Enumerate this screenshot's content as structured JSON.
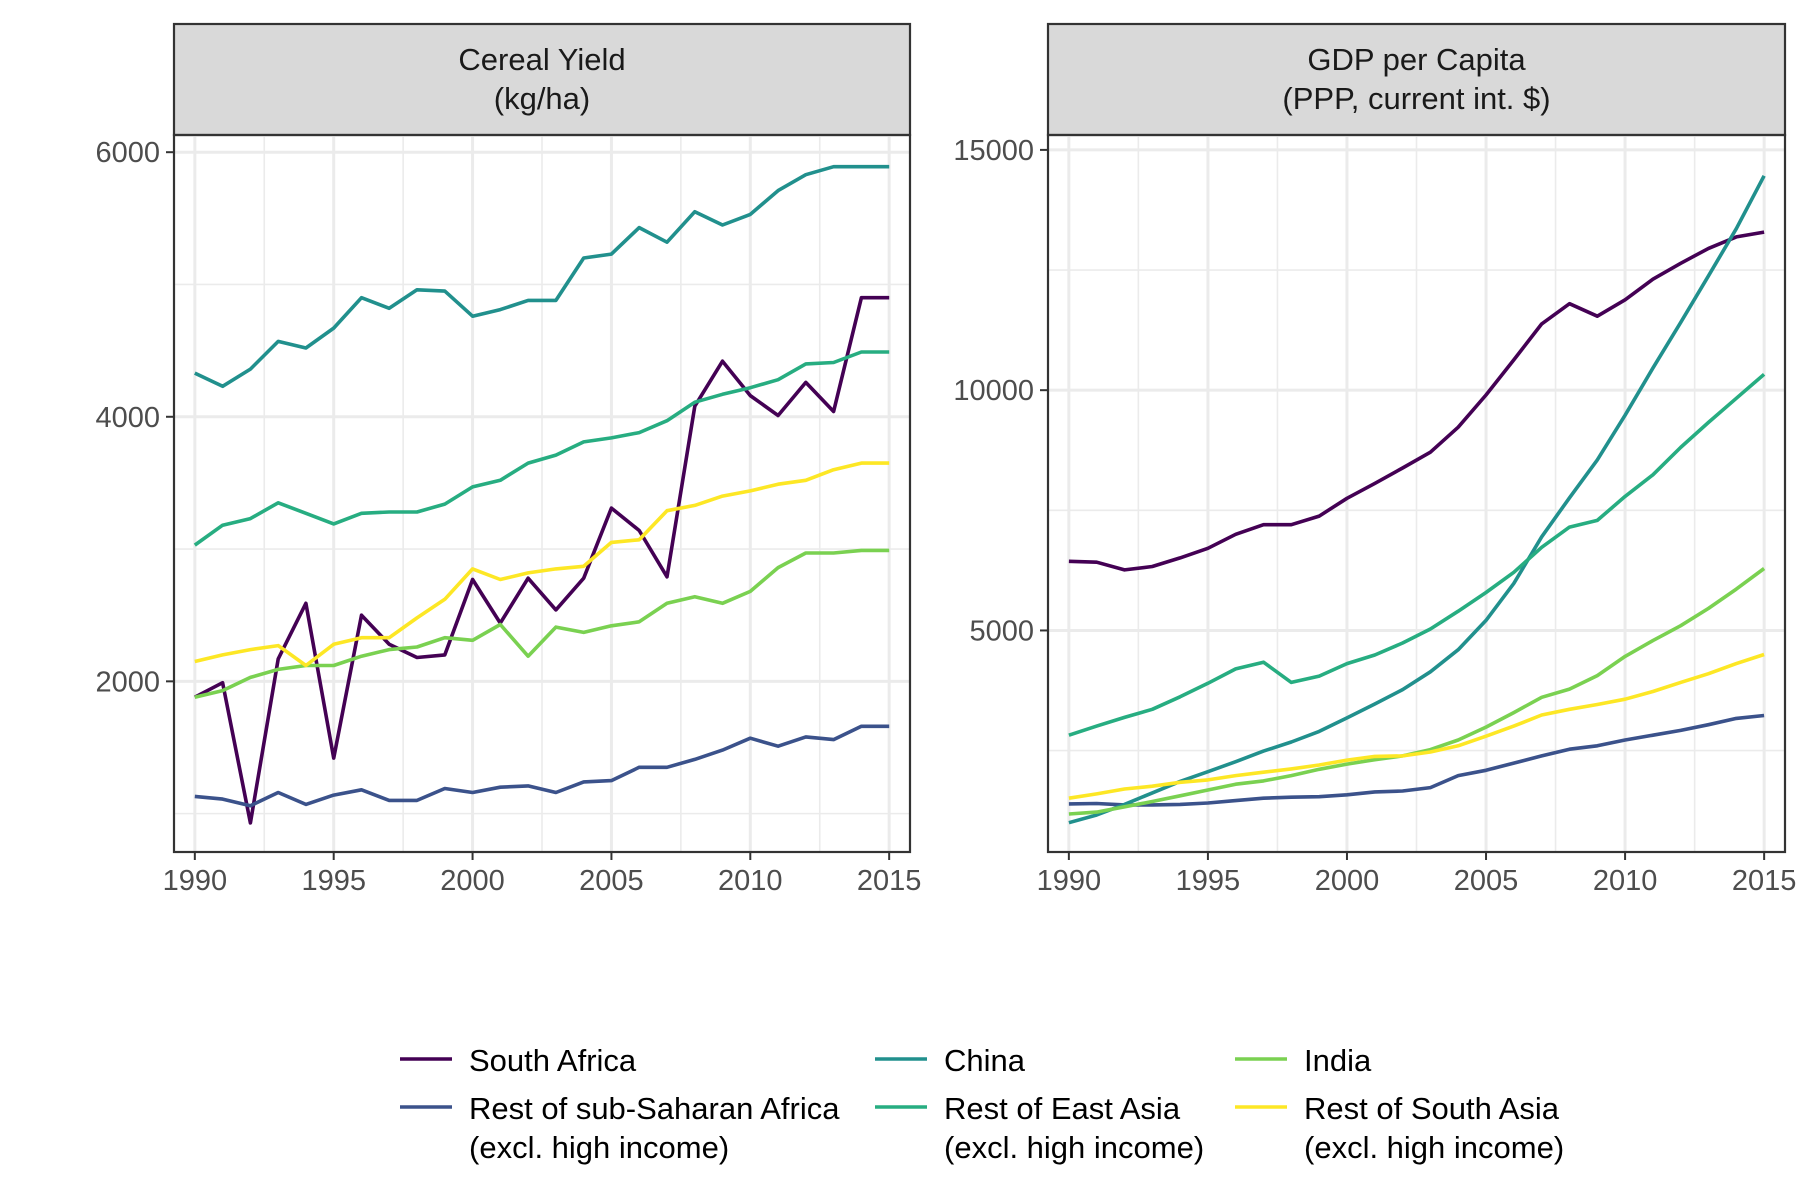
{
  "chart_data": [
    {
      "type": "line",
      "title": "Cereal Yield\n(kg/ha)",
      "xlabel": "",
      "ylabel": "",
      "x": [
        1990,
        1991,
        1992,
        1993,
        1994,
        1995,
        1996,
        1997,
        1998,
        1999,
        2000,
        2001,
        2002,
        2003,
        2004,
        2005,
        2006,
        2007,
        2008,
        2009,
        2010,
        2011,
        2012,
        2013,
        2014,
        2015
      ],
      "xlim": [
        1989.25,
        2015.75
      ],
      "ylim": [
        710,
        6130
      ],
      "xticks": [
        1990,
        1995,
        2000,
        2005,
        2010,
        2015
      ],
      "yticks": [
        2000,
        4000,
        6000
      ],
      "grid": true,
      "series": [
        {
          "name": "South Africa",
          "color": "#440154",
          "values": [
            1880,
            1990,
            930,
            2170,
            2590,
            1420,
            2500,
            2280,
            2180,
            2200,
            2770,
            2440,
            2780,
            2540,
            2780,
            3310,
            3140,
            2790,
            4080,
            4420,
            4160,
            4010,
            4260,
            4040,
            4900,
            4900
          ]
        },
        {
          "name": "Rest of sub-Saharan Africa\n(excl. high income)",
          "color": "#3b528b",
          "values": [
            1130,
            1110,
            1060,
            1160,
            1070,
            1140,
            1180,
            1100,
            1100,
            1190,
            1160,
            1200,
            1210,
            1160,
            1240,
            1250,
            1350,
            1350,
            1410,
            1480,
            1570,
            1510,
            1580,
            1560,
            1660,
            1660
          ]
        },
        {
          "name": "China",
          "color": "#21908d",
          "values": [
            4330,
            4230,
            4360,
            4570,
            4520,
            4670,
            4900,
            4820,
            4960,
            4950,
            4760,
            4810,
            4880,
            4880,
            5200,
            5230,
            5430,
            5320,
            5550,
            5450,
            5530,
            5710,
            5830,
            5890,
            5890,
            5890
          ]
        },
        {
          "name": "Rest of East Asia\n(excl. high income)",
          "color": "#27ad81",
          "values": [
            3030,
            3180,
            3230,
            3350,
            3270,
            3190,
            3270,
            3280,
            3280,
            3340,
            3470,
            3520,
            3650,
            3710,
            3810,
            3840,
            3880,
            3970,
            4110,
            4170,
            4220,
            4280,
            4400,
            4410,
            4490,
            4490
          ]
        },
        {
          "name": "India",
          "color": "#7ad151",
          "values": [
            1880,
            1930,
            2030,
            2090,
            2120,
            2120,
            2190,
            2240,
            2260,
            2330,
            2310,
            2430,
            2190,
            2410,
            2370,
            2420,
            2450,
            2590,
            2640,
            2590,
            2680,
            2860,
            2970,
            2970,
            2990,
            2990
          ]
        },
        {
          "name": "Rest of South Asia\n(excl. high income)",
          "color": "#fde725",
          "values": [
            2150,
            2200,
            2240,
            2270,
            2120,
            2280,
            2330,
            2330,
            2480,
            2620,
            2850,
            2770,
            2820,
            2850,
            2870,
            3050,
            3070,
            3290,
            3330,
            3400,
            3440,
            3490,
            3520,
            3600,
            3650,
            3650
          ]
        }
      ]
    },
    {
      "type": "line",
      "title": "GDP per Capita\n(PPP, current int. $)",
      "xlabel": "",
      "ylabel": "",
      "x": [
        1990,
        1991,
        1992,
        1993,
        1994,
        1995,
        1996,
        1997,
        1998,
        1999,
        2000,
        2001,
        2002,
        2003,
        2004,
        2005,
        2006,
        2007,
        2008,
        2009,
        2010,
        2011,
        2012,
        2013,
        2014,
        2015
      ],
      "xlim": [
        1989.25,
        2015.75
      ],
      "ylim": [
        390,
        15310
      ],
      "xticks": [
        1990,
        1995,
        2000,
        2005,
        2010,
        2015
      ],
      "yticks": [
        5000,
        10000,
        15000
      ],
      "grid": true,
      "series": [
        {
          "name": "South Africa",
          "color": "#440154",
          "values": [
            6440,
            6420,
            6260,
            6330,
            6510,
            6710,
            7000,
            7200,
            7200,
            7380,
            7750,
            8060,
            8380,
            8710,
            9230,
            9900,
            10630,
            11380,
            11800,
            11540,
            11880,
            12310,
            12640,
            12950,
            13190,
            13290
          ]
        },
        {
          "name": "Rest of sub-Saharan Africa\n(excl. high income)",
          "color": "#3b528b",
          "values": [
            1390,
            1400,
            1370,
            1370,
            1380,
            1410,
            1460,
            1510,
            1530,
            1540,
            1580,
            1640,
            1660,
            1730,
            1980,
            2090,
            2240,
            2390,
            2530,
            2600,
            2720,
            2820,
            2920,
            3040,
            3170,
            3230
          ]
        },
        {
          "name": "China",
          "color": "#21908d",
          "values": [
            1000,
            1160,
            1380,
            1620,
            1860,
            2060,
            2270,
            2490,
            2680,
            2900,
            3180,
            3470,
            3770,
            4140,
            4600,
            5210,
            5980,
            6950,
            7760,
            8550,
            9480,
            10460,
            11410,
            12380,
            13360,
            14460
          ]
        },
        {
          "name": "Rest of East Asia\n(excl. high income)",
          "color": "#27ad81",
          "values": [
            2820,
            3010,
            3190,
            3360,
            3620,
            3900,
            4200,
            4340,
            3920,
            4050,
            4310,
            4490,
            4740,
            5030,
            5400,
            5790,
            6210,
            6730,
            7150,
            7290,
            7790,
            8240,
            8810,
            9330,
            9830,
            10330
          ]
        },
        {
          "name": "India",
          "color": "#7ad151",
          "values": [
            1180,
            1220,
            1330,
            1440,
            1560,
            1680,
            1800,
            1870,
            1980,
            2110,
            2220,
            2310,
            2390,
            2520,
            2720,
            2990,
            3290,
            3610,
            3780,
            4060,
            4460,
            4790,
            5100,
            5460,
            5860,
            6290
          ]
        },
        {
          "name": "Rest of South Asia\n(excl. high income)",
          "color": "#fde725",
          "values": [
            1510,
            1600,
            1700,
            1760,
            1840,
            1890,
            1980,
            2050,
            2120,
            2200,
            2300,
            2380,
            2390,
            2470,
            2600,
            2800,
            3010,
            3240,
            3360,
            3460,
            3570,
            3730,
            3920,
            4100,
            4310,
            4500
          ]
        }
      ]
    }
  ],
  "legend": {
    "placement": "bottom",
    "columns": [
      [
        {
          "lines": [
            "South Africa"
          ],
          "color": "#440154"
        },
        {
          "lines": [
            "Rest of sub-Saharan Africa",
            "(excl. high income)"
          ],
          "color": "#3b528b"
        }
      ],
      [
        {
          "lines": [
            "China"
          ],
          "color": "#21908d"
        },
        {
          "lines": [
            "Rest of East Asia",
            "(excl. high income)"
          ],
          "color": "#27ad81"
        }
      ],
      [
        {
          "lines": [
            "India"
          ],
          "color": "#7ad151"
        },
        {
          "lines": [
            "Rest of South Asia",
            "(excl. high income)"
          ],
          "color": "#fde725"
        }
      ]
    ]
  }
}
